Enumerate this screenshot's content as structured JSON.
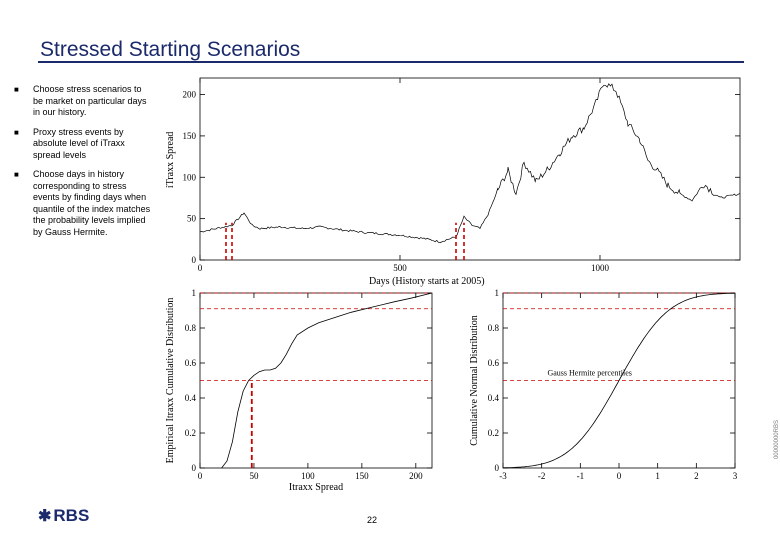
{
  "slide": {
    "title": "Stressed Starting Scenarios",
    "page_number": "22",
    "logo_text": "RBS",
    "logo_mark": "✱",
    "side_code": "00000000RBS"
  },
  "bullets": [
    "Choose stress scenarios to be market on particular days in our history.",
    "Proxy stress events by absolute level of iTraxx spread levels",
    "Choose days in history corresponding to stress events by finding days when quantile of the index matches the probability levels implied by Gauss Hermite."
  ],
  "colors": {
    "title": "#1b2a6b",
    "stress_marker": "#cc0000"
  },
  "chart_data": [
    {
      "type": "line",
      "xlabel": "Days (History starts at 2005)",
      "ylabel": "iTraxx Spread",
      "xlim": [
        0,
        1350
      ],
      "ylim": [
        0,
        220
      ],
      "xticks": [
        0,
        500,
        1000
      ],
      "yticks": [
        0,
        50,
        100,
        150,
        200
      ],
      "x": [
        0,
        40,
        80,
        110,
        130,
        150,
        200,
        260,
        300,
        360,
        420,
        500,
        560,
        600,
        640,
        660,
        680,
        700,
        720,
        745,
        770,
        790,
        810,
        840,
        870,
        900,
        930,
        960,
        990,
        1010,
        1040,
        1070,
        1100,
        1120,
        1140,
        1170,
        1200,
        1230,
        1260,
        1300,
        1350
      ],
      "y": [
        34,
        38,
        42,
        57,
        42,
        38,
        40,
        38,
        40,
        36,
        33,
        30,
        26,
        22,
        28,
        52,
        42,
        38,
        55,
        85,
        108,
        80,
        118,
        95,
        110,
        130,
        150,
        160,
        190,
        215,
        205,
        165,
        145,
        120,
        110,
        90,
        80,
        72,
        92,
        75,
        80
      ],
      "stress_days": [
        65,
        80,
        640,
        660
      ]
    },
    {
      "type": "line",
      "ylabel": "Empirical Itraxx Cumulative Distribution",
      "xlabel": "Itraxx Spread",
      "xlim": [
        0,
        215
      ],
      "ylim": [
        0,
        1
      ],
      "xticks": [
        0,
        50,
        100,
        150,
        200
      ],
      "yticks": [
        0,
        0.2,
        0.4,
        0.6,
        0.8,
        1
      ],
      "x": [
        20,
        25,
        30,
        35,
        40,
        45,
        50,
        55,
        60,
        65,
        70,
        75,
        80,
        85,
        90,
        100,
        110,
        125,
        140,
        160,
        180,
        195,
        215
      ],
      "y": [
        0.0,
        0.04,
        0.15,
        0.32,
        0.44,
        0.5,
        0.53,
        0.55,
        0.56,
        0.56,
        0.57,
        0.6,
        0.65,
        0.71,
        0.76,
        0.8,
        0.83,
        0.86,
        0.89,
        0.92,
        0.95,
        0.97,
        1.0
      ],
      "reference_levels": [
        0.5,
        0.91,
        1.0
      ],
      "marker_x": 48
    },
    {
      "type": "line",
      "ylabel": "Cumulative Normal Distribution",
      "annotation": "Gauss Hermite percentiles",
      "xlim": [
        -3,
        3
      ],
      "ylim": [
        0,
        1
      ],
      "xticks": [
        -3,
        -2,
        -1,
        0,
        1,
        2,
        3
      ],
      "yticks": [
        0,
        0.2,
        0.4,
        0.6,
        0.8,
        1
      ],
      "reference_levels": [
        0.5,
        0.91,
        1.0
      ]
    }
  ]
}
